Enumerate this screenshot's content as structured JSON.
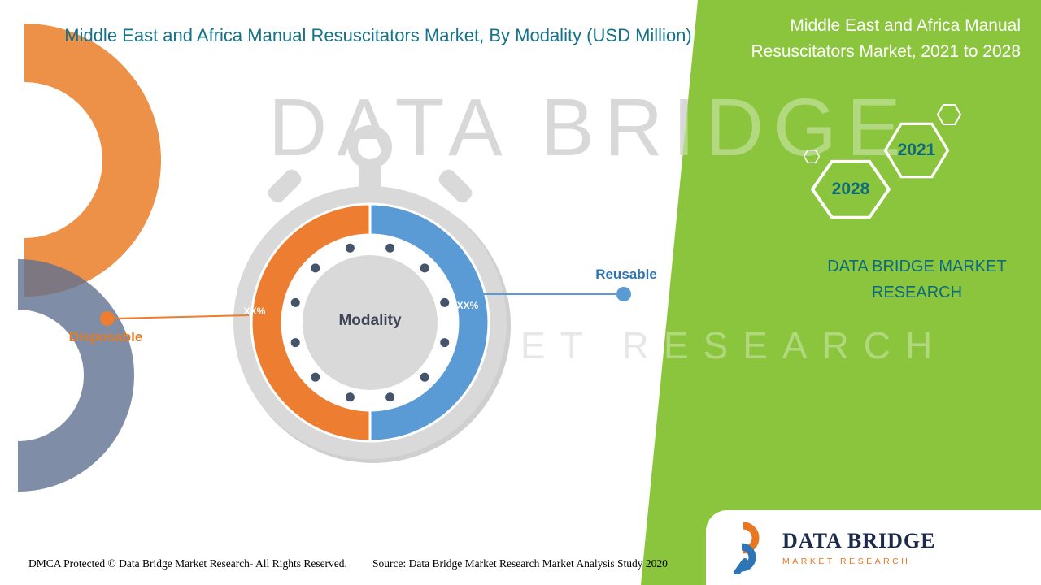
{
  "title": "Middle East and Africa Manual Resuscitators Market, By Modality (USD Million)",
  "side_panel": {
    "title": "Middle East and Africa Manual Resuscitators Market, 2021 to 2028",
    "years": [
      "2028",
      "2021"
    ],
    "brand": [
      "DATA BRIDGE MARKET",
      "RESEARCH"
    ]
  },
  "watermark": {
    "line1": "DATA BRIDGE",
    "line2": "MARKET RESEARCH"
  },
  "chart_data": {
    "type": "pie",
    "title": "Middle East and Africa Manual Resuscitators Market, By Modality (USD Million)",
    "center_label": "Modality",
    "legend_position": "callout-lines",
    "segments": [
      {
        "label": "Disposable",
        "value": 50,
        "value_label": "XX%",
        "color": "#ed7d31",
        "label_color": "#e07b28"
      },
      {
        "label": "Reusable",
        "value": 50,
        "value_label": "XX%",
        "color": "#5b9bd5",
        "label_color": "#2e74b5"
      }
    ]
  },
  "footer": {
    "dmca": "DMCA Protected © Data Bridge Market Research- All Rights Reserved.",
    "source": "Source: Data Bridge Market Research Market Analysis Study 2020"
  },
  "logo": {
    "name": "DATA BRIDGE",
    "subtitle": "MARKET RESEARCH"
  },
  "colors": {
    "teal": "#147289",
    "green": "#8bc53d",
    "gray_body": "#d9d9d9",
    "dot": "#44546a"
  }
}
